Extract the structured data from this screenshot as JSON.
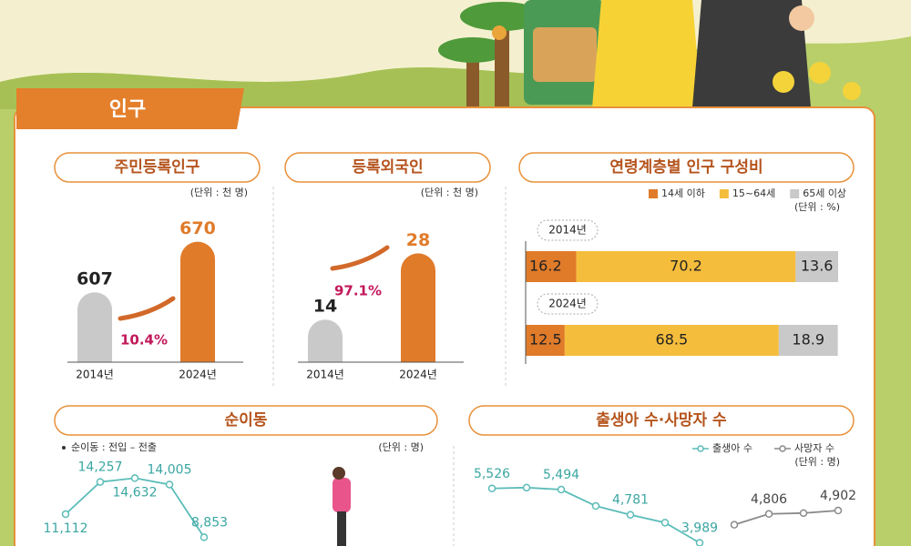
{
  "section_title": "인구",
  "chart_data": [
    {
      "type": "bar",
      "title": "주민등록인구",
      "unit": "(단위 : 천 명)",
      "categories": [
        "2014년",
        "2024년"
      ],
      "values": [
        607,
        670
      ],
      "colors": [
        "#c9c9c9",
        "#e07b2a"
      ],
      "ylim": [
        520,
        690
      ],
      "annotation": "10.4%"
    },
    {
      "type": "bar",
      "title": "등록외국인",
      "unit": "(단위 : 천 명)",
      "categories": [
        "2014년",
        "2024년"
      ],
      "values": [
        14,
        28
      ],
      "colors": [
        "#c9c9c9",
        "#e07b2a"
      ],
      "ylim": [
        5,
        30
      ],
      "annotation": "97.1%"
    },
    {
      "type": "stacked_bar_h",
      "title": "연령계층별 인구 구성비",
      "unit": "(단위 : %)",
      "categories": [
        "2014년",
        "2024년"
      ],
      "series": [
        {
          "name": "14세 이하",
          "color": "#e07b2a",
          "values": [
            16.2,
            12.5
          ]
        },
        {
          "name": "15~64세",
          "color": "#f5bd3c",
          "values": [
            70.2,
            68.5
          ]
        },
        {
          "name": "65세 이상",
          "color": "#c9c9c9",
          "values": [
            13.6,
            18.9
          ]
        }
      ],
      "xlim": [
        0,
        100
      ]
    },
    {
      "type": "line",
      "title": "순이동",
      "note": "순이동 : 전입 – 전출",
      "unit": "(단위 : 명)",
      "categories": [
        null,
        null,
        null,
        null,
        null
      ],
      "values": [
        11112,
        14257,
        14632,
        14005,
        8853
      ],
      "value_labels": [
        "11,112",
        "14,257",
        "14,632",
        "14,005",
        "8,853"
      ],
      "color": "#5bbcb8",
      "ylim": [
        8000,
        16000
      ]
    },
    {
      "type": "line",
      "title": "출생아 수·사망자 수",
      "unit": "(단위 : 명)",
      "categories": [
        null,
        null,
        null,
        null,
        null,
        null,
        null,
        null,
        null,
        null,
        null
      ],
      "series": [
        {
          "name": "출생아 수",
          "color": "#5bbcb8",
          "values": [
            5526,
            5550,
            5494,
            5030,
            4781,
            4560,
            3989,
            null,
            null,
            null,
            null
          ],
          "value_labels": [
            "5,526",
            null,
            "5,494",
            null,
            "4,781",
            null,
            "3,989",
            null,
            null,
            null,
            null
          ]
        },
        {
          "name": "사망자 수",
          "color": "#8a8a8a",
          "values": [
            null,
            null,
            null,
            null,
            null,
            null,
            null,
            4500,
            4806,
            4830,
            4902
          ],
          "value_labels": [
            null,
            null,
            null,
            null,
            null,
            null,
            null,
            null,
            "4,806",
            null,
            "4,902"
          ]
        }
      ],
      "ylim": [
        3900,
        5700
      ]
    }
  ]
}
